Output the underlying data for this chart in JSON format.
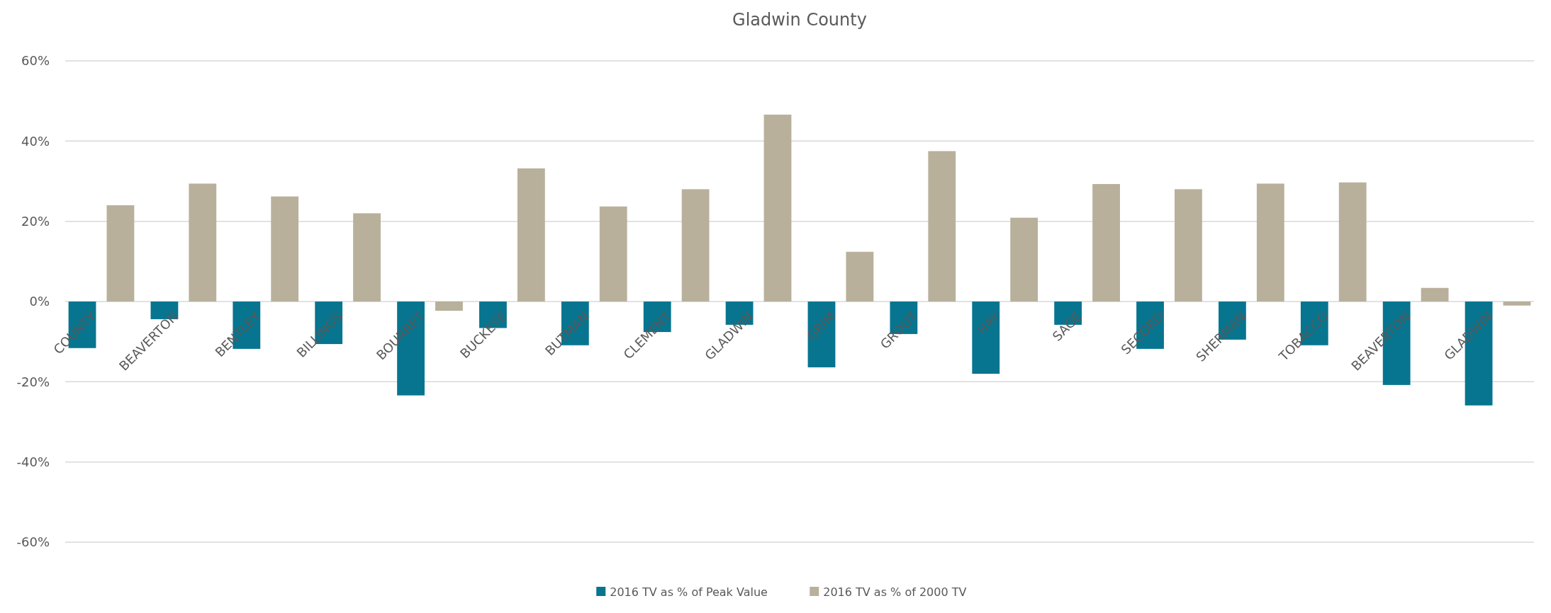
{
  "chart_data": {
    "type": "bar",
    "title": "Gladwin County",
    "categories": [
      "COUNTY",
      "BEAVERTON",
      "BENTLEY",
      "BILLINGS",
      "BOURRET",
      "BUCKEYE",
      "BUTMAN",
      "CLEMENT",
      "GLADWIN",
      "GRIM",
      "GROUT",
      "HAY",
      "SAGE",
      "SECORD",
      "SHERMAN",
      "TOBACCO",
      "BEAVERTON",
      "GLADWIN"
    ],
    "series": [
      {
        "name": "2016 TV as % of Peak Value",
        "color": "#07758f",
        "values": [
          -11.6,
          -4.4,
          -11.8,
          -10.6,
          -23.4,
          -6.6,
          -10.9,
          -7.6,
          -5.8,
          -16.4,
          -8.1,
          -18.0,
          -5.8,
          -11.8,
          -9.5,
          -10.9,
          -20.8,
          -25.9
        ]
      },
      {
        "name": "2016 TV as % of 2000 TV",
        "color": "#b8b09b",
        "values": [
          24,
          29.4,
          26.2,
          22,
          -2.3,
          33.2,
          23.7,
          28,
          46.6,
          12.4,
          37.5,
          20.9,
          29.3,
          28,
          29.4,
          29.7,
          3.4,
          -1
        ]
      }
    ],
    "ylim": [
      -60,
      60
    ],
    "yticks": [
      {
        "value": -60,
        "label": "-60%"
      },
      {
        "value": -40,
        "label": "-40%"
      },
      {
        "value": -20,
        "label": "-20%"
      },
      {
        "value": 0,
        "label": "0%"
      },
      {
        "value": 20,
        "label": "20%"
      },
      {
        "value": 40,
        "label": "40%"
      },
      {
        "value": 60,
        "label": "60%"
      }
    ],
    "grid": "y",
    "legend": "bottom"
  }
}
